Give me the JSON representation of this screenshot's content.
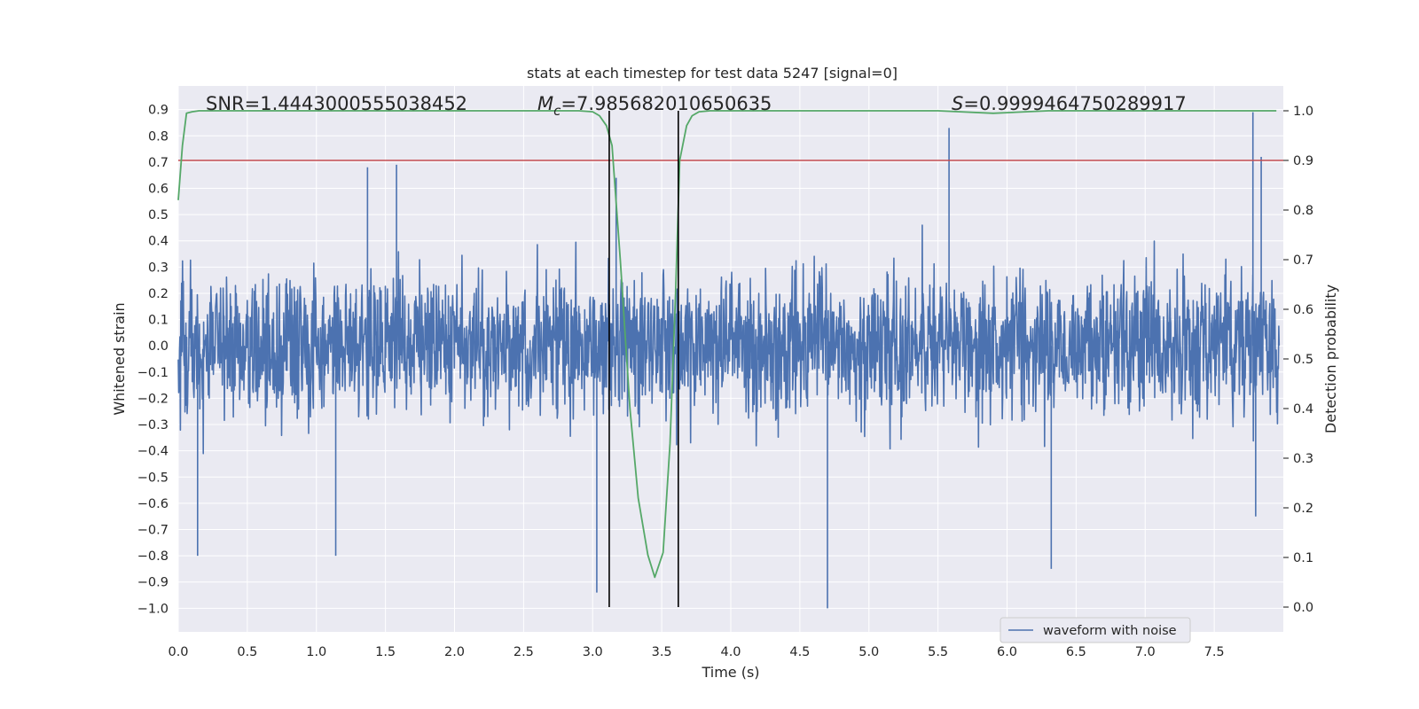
{
  "chart_data": {
    "type": "line",
    "title": "stats at each timestep for test data 5247 [signal=0]",
    "xlabel": "Time (s)",
    "ylabel_left": "Whitened strain",
    "ylabel_right": "Detection probability",
    "xlim": [
      0.0,
      8.0
    ],
    "ylim_left": [
      -1.09,
      0.99
    ],
    "ylim_right": [
      -0.05,
      1.05
    ],
    "xticks": [
      "0.0",
      "0.5",
      "1.0",
      "1.5",
      "2.0",
      "2.5",
      "3.0",
      "3.5",
      "4.0",
      "4.5",
      "5.0",
      "5.5",
      "6.0",
      "6.5",
      "7.0",
      "7.5"
    ],
    "yticks_left": [
      "0.9",
      "0.8",
      "0.7",
      "0.6",
      "0.5",
      "0.4",
      "0.3",
      "0.2",
      "0.1",
      "0.0",
      "−0.1",
      "−0.2",
      "−0.3",
      "−0.4",
      "−0.5",
      "−0.6",
      "−0.7",
      "−0.8",
      "−0.9",
      "−1.0"
    ],
    "yticks_right": [
      "1.0",
      "0.9",
      "0.8",
      "0.7",
      "0.6",
      "0.5",
      "0.4",
      "0.3",
      "0.2",
      "0.1",
      "0.0"
    ],
    "annotations": {
      "snr": "SNR=1.4443000555038452",
      "mc_symbol": "M",
      "mc_sub": "c",
      "mc_value": "=7.985682010650635",
      "s_symbol": "S",
      "s_value": "=0.9999464750289917"
    },
    "threshold_prob": 0.9,
    "vertical_lines_x": [
      3.12,
      3.62
    ],
    "series": [
      {
        "name": "waveform with noise",
        "axis": "left",
        "description": "dense whitened-noise strain, mostly within [-0.5, 0.5] with spikes",
        "spikes": [
          {
            "x": 0.14,
            "y": -0.8
          },
          {
            "x": 1.14,
            "y": -0.8
          },
          {
            "x": 1.37,
            "y": 0.68
          },
          {
            "x": 1.58,
            "y": 0.69
          },
          {
            "x": 3.03,
            "y": -0.94
          },
          {
            "x": 3.17,
            "y": 0.64
          },
          {
            "x": 4.7,
            "y": -1.0
          },
          {
            "x": 5.58,
            "y": 0.83
          },
          {
            "x": 6.32,
            "y": -0.85
          },
          {
            "x": 7.78,
            "y": 0.89
          },
          {
            "x": 7.84,
            "y": 0.72
          },
          {
            "x": 7.8,
            "y": -0.65
          }
        ]
      },
      {
        "name": "detection probability",
        "axis": "right",
        "x": [
          0.0,
          0.03,
          0.06,
          0.1,
          0.15,
          0.3,
          0.6,
          1.0,
          1.5,
          2.0,
          2.5,
          2.9,
          3.0,
          3.05,
          3.1,
          3.14,
          3.2,
          3.27,
          3.33,
          3.4,
          3.45,
          3.51,
          3.56,
          3.6,
          3.63,
          3.68,
          3.72,
          3.77,
          3.85,
          4.0,
          4.5,
          5.0,
          5.5,
          5.9,
          6.3,
          6.8,
          7.2,
          7.6,
          7.95
        ],
        "values": [
          0.82,
          0.93,
          0.995,
          0.998,
          1.0,
          1.0,
          1.0,
          1.0,
          1.0,
          1.0,
          1.0,
          1.0,
          0.998,
          0.99,
          0.97,
          0.93,
          0.7,
          0.4,
          0.22,
          0.105,
          0.06,
          0.11,
          0.33,
          0.63,
          0.9,
          0.97,
          0.99,
          0.998,
          1.0,
          1.0,
          1.0,
          1.0,
          1.0,
          0.995,
          1.0,
          1.0,
          1.0,
          1.0,
          1.0
        ]
      }
    ],
    "legend": {
      "label": "waveform with noise",
      "placement": "lower-right"
    },
    "colors": {
      "axes_bg": "#eaeaf2",
      "grid": "#ffffff",
      "waveform": "#4c72b0",
      "probability": "#55a868",
      "threshold": "#c44e52",
      "vlines": "#000000",
      "text": "#262626"
    }
  }
}
